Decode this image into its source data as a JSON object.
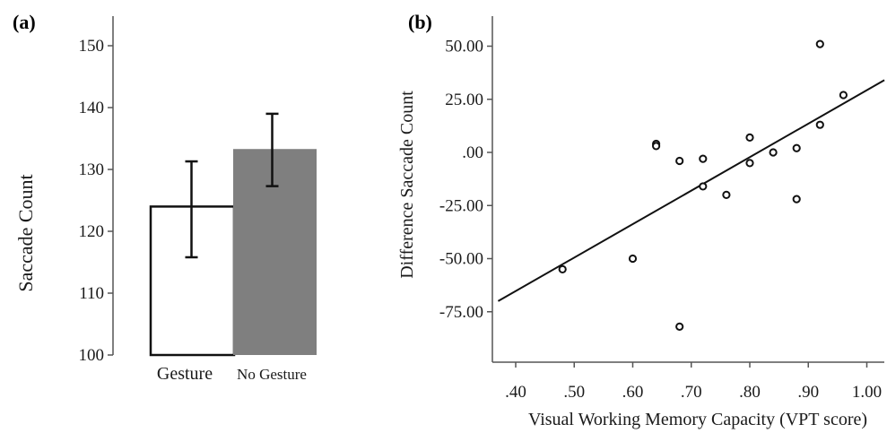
{
  "chart_data": [
    {
      "type": "bar",
      "panel_label": "(a)",
      "categories": [
        "Gesture",
        "No Gesture"
      ],
      "values": [
        124,
        133.3
      ],
      "error_low": [
        115.8,
        127.3
      ],
      "error_high": [
        131.3,
        139.0
      ],
      "bar_colors": [
        "#ffffff",
        "#7f7f7f"
      ],
      "xlabel": "",
      "ylabel": "Saccade Count",
      "ylim": [
        100,
        155
      ],
      "yticks": [
        "100",
        "110",
        "120",
        "130",
        "140",
        "150"
      ],
      "grid": false
    },
    {
      "type": "scatter",
      "panel_label": "(b)",
      "xlabel": "Visual Working Memory Capacity (VPT score)",
      "ylabel": "Difference Saccade Count",
      "xlim": [
        0.37,
        1.03
      ],
      "ylim": [
        -96,
        60
      ],
      "xticks": [
        ".40",
        ".50",
        ".60",
        ".70",
        ".80",
        ".90",
        "1.00"
      ],
      "yticks": [
        "50.00",
        "25.00",
        ".00",
        "-25.00",
        "-50.00",
        "-75.00"
      ],
      "points": [
        {
          "x": 0.48,
          "y": -55
        },
        {
          "x": 0.6,
          "y": -50
        },
        {
          "x": 0.64,
          "y": 4
        },
        {
          "x": 0.64,
          "y": 3
        },
        {
          "x": 0.68,
          "y": -4
        },
        {
          "x": 0.68,
          "y": -82
        },
        {
          "x": 0.72,
          "y": -3
        },
        {
          "x": 0.72,
          "y": -16
        },
        {
          "x": 0.76,
          "y": -20
        },
        {
          "x": 0.8,
          "y": 7
        },
        {
          "x": 0.8,
          "y": -5
        },
        {
          "x": 0.84,
          "y": 0
        },
        {
          "x": 0.88,
          "y": 2
        },
        {
          "x": 0.88,
          "y": -22
        },
        {
          "x": 0.92,
          "y": 51
        },
        {
          "x": 0.92,
          "y": 13
        },
        {
          "x": 0.96,
          "y": 27
        }
      ],
      "fit_line": {
        "x": [
          0.37,
          1.03
        ],
        "y": [
          -70,
          34
        ]
      },
      "grid": false
    }
  ]
}
